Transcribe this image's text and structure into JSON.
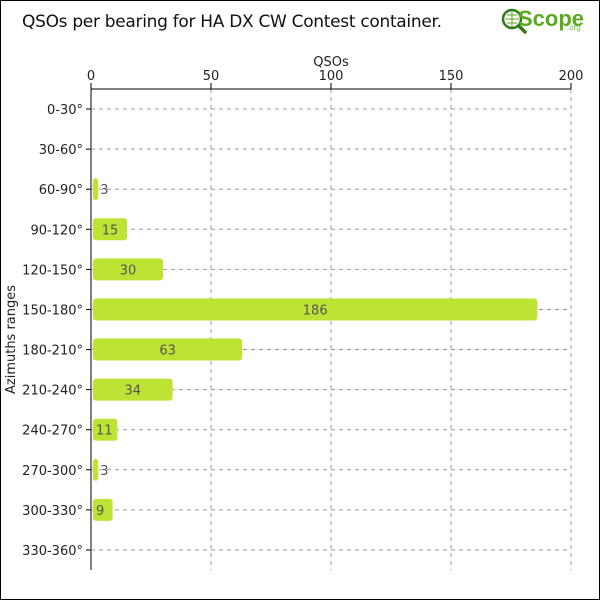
{
  "title": "QSOs per bearing for HA DX CW Contest container.",
  "logo": {
    "text": "Scope",
    "prefix": "Q",
    "suffix": ".org"
  },
  "colors": {
    "bar": "#bde334",
    "grid": "#999999",
    "axis": "#000000"
  },
  "chart_data": {
    "type": "bar",
    "orientation": "horizontal",
    "xlabel": "QSOs",
    "ylabel": "Azimuths ranges",
    "xlim": [
      0,
      200
    ],
    "x_ticks": [
      0,
      50,
      100,
      150,
      200
    ],
    "grid": true,
    "categories": [
      "0-30°",
      "30-60°",
      "60-90°",
      "90-120°",
      "120-150°",
      "150-180°",
      "180-210°",
      "210-240°",
      "240-270°",
      "270-300°",
      "300-330°",
      "330-360°"
    ],
    "values": [
      0,
      0,
      3,
      15,
      30,
      186,
      63,
      34,
      11,
      3,
      9,
      0
    ]
  }
}
